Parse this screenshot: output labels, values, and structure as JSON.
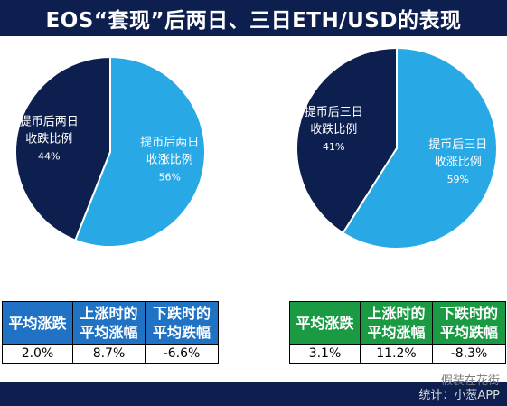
{
  "title": "EOS“套现”后两日、三日ETH/USD的表现",
  "chart_data": [
    {
      "type": "pie",
      "slices": [
        {
          "label_line1": "提币后两日",
          "label_line2": "收跌比例",
          "percent_label": "44%",
          "value": 44,
          "color": "#0d1f4f"
        },
        {
          "label_line1": "提币后两日",
          "label_line2": "收涨比例",
          "percent_label": "56%",
          "value": 56,
          "color": "#29a8e6"
        }
      ]
    },
    {
      "type": "pie",
      "slices": [
        {
          "label_line1": "提币后三日",
          "label_line2": "收跌比例",
          "percent_label": "41%",
          "value": 41,
          "color": "#0d1f4f"
        },
        {
          "label_line1": "提币后三日",
          "label_line2": "收涨比例",
          "percent_label": "59%",
          "value": 59,
          "color": "#29a8e6"
        }
      ]
    }
  ],
  "tables": {
    "left": {
      "headers": [
        [
          "平均涨跌"
        ],
        [
          "上涨时的",
          "平均涨幅"
        ],
        [
          "下跌时的",
          "平均跌幅"
        ]
      ],
      "values": [
        "2.0%",
        "8.7%",
        "-6.6%"
      ]
    },
    "right": {
      "headers": [
        [
          "平均涨跌"
        ],
        [
          "上涨时的",
          "平均涨幅"
        ],
        [
          "下跌时的",
          "平均跌幅"
        ]
      ],
      "values": [
        "3.1%",
        "11.2%",
        "-8.3%"
      ]
    }
  },
  "watermark": {
    "line1": "假装在花街",
    "line2": "统计：小葱APP"
  }
}
